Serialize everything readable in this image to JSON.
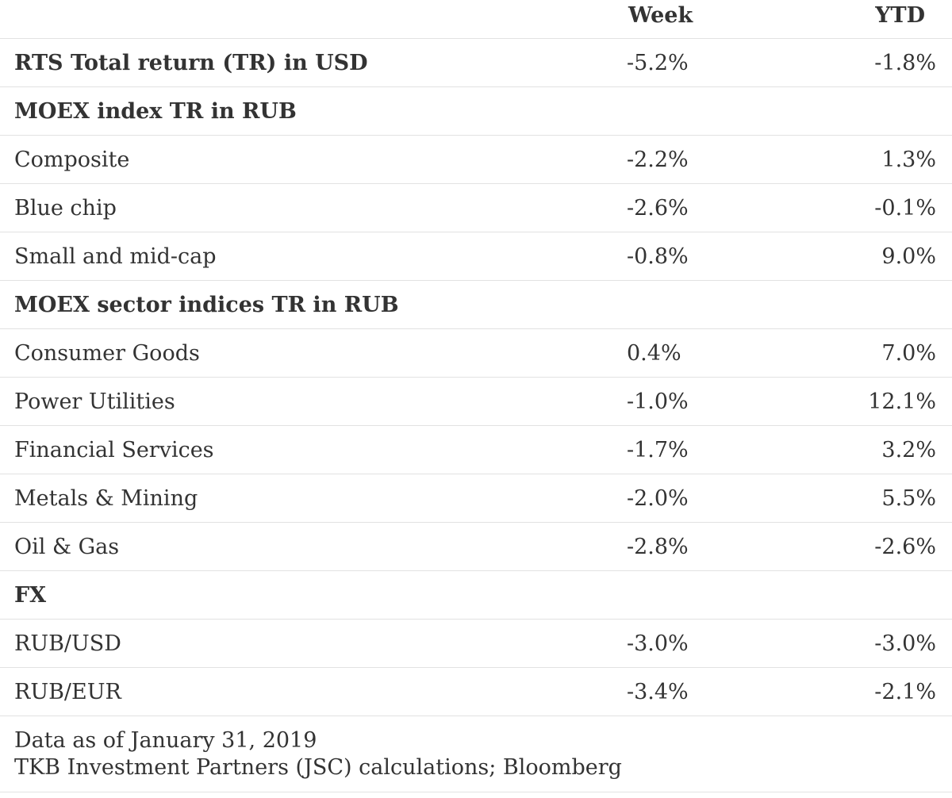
{
  "columns": {
    "week": "Week",
    "ytd": "YTD"
  },
  "rows": [
    {
      "label": "RTS Total return (TR) in USD",
      "week": "-5.2%",
      "ytd": "-1.8%",
      "bold": true
    },
    {
      "label": "MOEX index TR in RUB",
      "week": "",
      "ytd": "",
      "bold": true
    },
    {
      "label": "Composite",
      "week": "-2.2%",
      "ytd": "1.3%",
      "bold": false
    },
    {
      "label": "Blue chip",
      "week": "-2.6%",
      "ytd": "-0.1%",
      "bold": false
    },
    {
      "label": "Small and mid-cap",
      "week": "-0.8%",
      "ytd": "9.0%",
      "bold": false
    },
    {
      "label": "MOEX sector indices TR in RUB",
      "week": "",
      "ytd": "",
      "bold": true
    },
    {
      "label": "Consumer Goods",
      "week": "0.4%",
      "ytd": "7.0%",
      "bold": false
    },
    {
      "label": "Power Utilities",
      "week": "-1.0%",
      "ytd": "12.1%",
      "bold": false
    },
    {
      "label": "Financial Services",
      "week": "-1.7%",
      "ytd": "3.2%",
      "bold": false
    },
    {
      "label": "Metals & Mining",
      "week": "-2.0%",
      "ytd": "5.5%",
      "bold": false
    },
    {
      "label": "Oil & Gas",
      "week": "-2.8%",
      "ytd": "-2.6%",
      "bold": false
    },
    {
      "label": "FX",
      "week": "",
      "ytd": "",
      "bold": true
    },
    {
      "label": "RUB/USD",
      "week": "-3.0%",
      "ytd": "-3.0%",
      "bold": false
    },
    {
      "label": "RUB/EUR",
      "week": "-3.4%",
      "ytd": "-2.1%",
      "bold": false
    }
  ],
  "footer": {
    "line1": "Data as of January 31, 2019",
    "line2": "TKB Investment Partners (JSC) calculations; Bloomberg"
  }
}
